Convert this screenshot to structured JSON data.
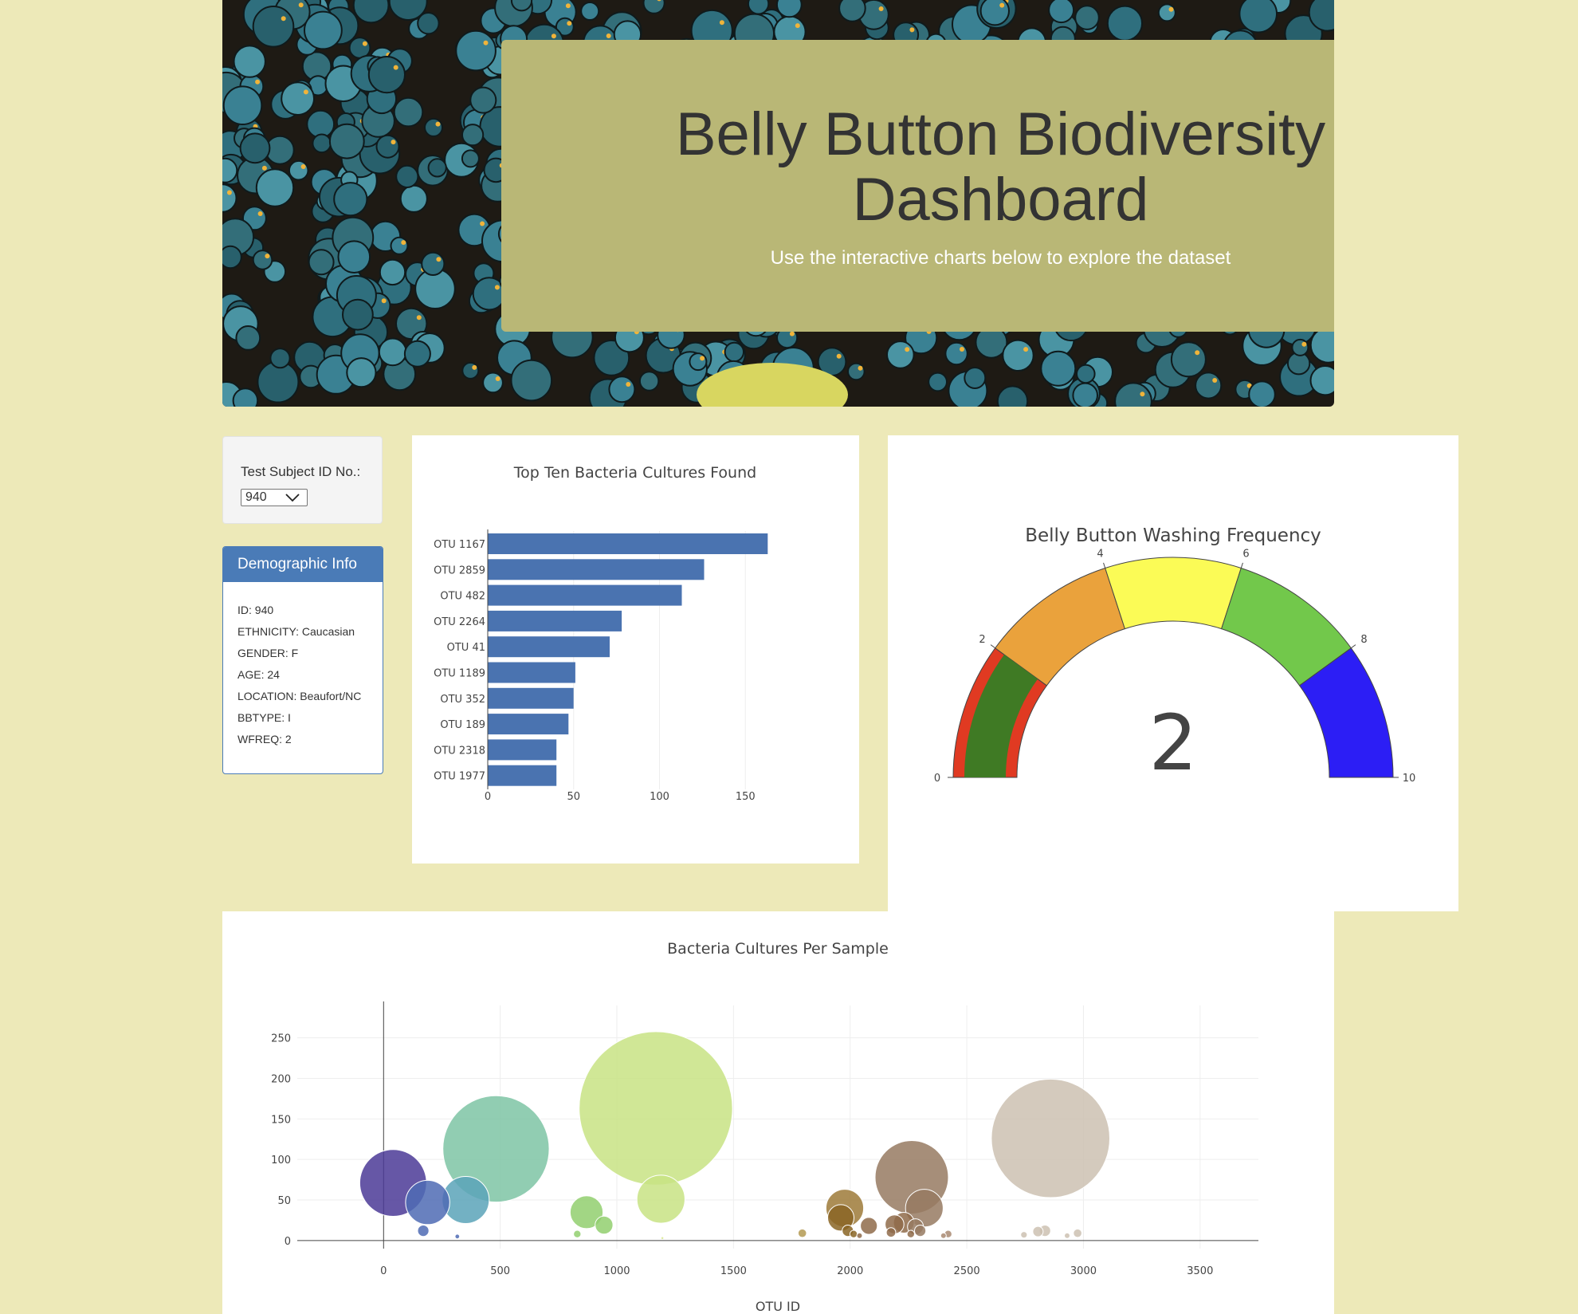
{
  "header": {
    "title_line1": "Belly Button Biodiversity",
    "title_line2": "Dashboard",
    "subtitle": "Use the interactive charts below to explore the dataset"
  },
  "selector": {
    "label": "Test Subject ID No.:",
    "value": "940"
  },
  "demographic": {
    "heading": "Demographic Info",
    "rows": [
      "ID: 940",
      "ETHNICITY: Caucasian",
      "GENDER: F",
      "AGE: 24",
      "LOCATION: Beaufort/NC",
      "BBTYPE: I",
      "WFREQ: 2"
    ]
  },
  "colors": {
    "page_bg": "#ede9b8",
    "jumbotron_bg": "#b9b776",
    "accent_blue": "#4a7bb7"
  },
  "chart_data": [
    {
      "type": "bar",
      "orientation": "horizontal",
      "title": "Top Ten Bacteria Cultures Found",
      "categories": [
        "OTU 1167",
        "OTU 2859",
        "OTU 482",
        "OTU 2264",
        "OTU 41",
        "OTU 1189",
        "OTU 352",
        "OTU 189",
        "OTU 2318",
        "OTU 1977"
      ],
      "values": [
        163,
        126,
        113,
        78,
        71,
        51,
        50,
        47,
        40,
        40
      ],
      "xlim": [
        0,
        175
      ],
      "xticks": [
        0,
        50,
        100,
        150
      ],
      "grid": true,
      "color": "#4a73b0"
    },
    {
      "type": "gauge",
      "title": "Belly Button Washing Frequency",
      "value": 2,
      "range": [
        0,
        10
      ],
      "tick_labels": [
        "0",
        "2",
        "4",
        "6",
        "8",
        "10"
      ],
      "steps": [
        {
          "range": [
            0,
            2
          ],
          "color": "#e03a22"
        },
        {
          "range": [
            2,
            4
          ],
          "color": "#eaa23c"
        },
        {
          "range": [
            4,
            6
          ],
          "color": "#fbfb56"
        },
        {
          "range": [
            6,
            8
          ],
          "color": "#72c84b"
        },
        {
          "range": [
            8,
            10
          ],
          "color": "#2c1ef5"
        }
      ],
      "bar_color": "#3f7a24"
    },
    {
      "type": "scatter",
      "title": "Bacteria Cultures Per Sample",
      "xlabel": "OTU ID",
      "xlim": [
        -370,
        3750
      ],
      "ylim": [
        -10,
        290
      ],
      "xticks": [
        0,
        500,
        1000,
        1500,
        2000,
        2500,
        3000,
        3500
      ],
      "yticks": [
        0,
        50,
        100,
        150,
        200,
        250
      ],
      "grid": true,
      "points": [
        {
          "x": 41,
          "y": 71,
          "size": 71,
          "color": "#4b3a96"
        },
        {
          "x": 189,
          "y": 47,
          "size": 47,
          "color": "#4f6bb4"
        },
        {
          "x": 170,
          "y": 12,
          "size": 12,
          "color": "#4f6bb4"
        },
        {
          "x": 316,
          "y": 5,
          "size": 5,
          "color": "#4f6bb4"
        },
        {
          "x": 352,
          "y": 50,
          "size": 50,
          "color": "#5aa3b8"
        },
        {
          "x": 482,
          "y": 113,
          "size": 113,
          "color": "#7ec4a4"
        },
        {
          "x": 870,
          "y": 35,
          "size": 35,
          "color": "#92cf6e"
        },
        {
          "x": 945,
          "y": 19,
          "size": 19,
          "color": "#92cf6e"
        },
        {
          "x": 830,
          "y": 8,
          "size": 8,
          "color": "#92cf6e"
        },
        {
          "x": 1167,
          "y": 163,
          "size": 163,
          "color": "#c8e384"
        },
        {
          "x": 1189,
          "y": 51,
          "size": 51,
          "color": "#c8e384"
        },
        {
          "x": 1195,
          "y": 3,
          "size": 3,
          "color": "#d8e78f"
        },
        {
          "x": 1795,
          "y": 9,
          "size": 9,
          "color": "#b49a52"
        },
        {
          "x": 1977,
          "y": 40,
          "size": 40,
          "color": "#9e7a38"
        },
        {
          "x": 1960,
          "y": 28,
          "size": 28,
          "color": "#8a6525"
        },
        {
          "x": 1990,
          "y": 12,
          "size": 12,
          "color": "#8a6525"
        },
        {
          "x": 2015,
          "y": 8,
          "size": 8,
          "color": "#8a6525"
        },
        {
          "x": 2080,
          "y": 18,
          "size": 18,
          "color": "#8f6b4a"
        },
        {
          "x": 2040,
          "y": 6,
          "size": 6,
          "color": "#8f6b4a"
        },
        {
          "x": 2264,
          "y": 78,
          "size": 78,
          "color": "#977a62"
        },
        {
          "x": 2318,
          "y": 40,
          "size": 40,
          "color": "#977a62"
        },
        {
          "x": 2190,
          "y": 20,
          "size": 20,
          "color": "#8f6b4a"
        },
        {
          "x": 2230,
          "y": 22,
          "size": 22,
          "color": "#8f6b4a"
        },
        {
          "x": 2280,
          "y": 17,
          "size": 17,
          "color": "#977a62"
        },
        {
          "x": 2300,
          "y": 12,
          "size": 12,
          "color": "#977a62"
        },
        {
          "x": 2260,
          "y": 8,
          "size": 8,
          "color": "#8f6b4a"
        },
        {
          "x": 2175,
          "y": 10,
          "size": 10,
          "color": "#8f6b4a"
        },
        {
          "x": 2420,
          "y": 8,
          "size": 8,
          "color": "#a98a72"
        },
        {
          "x": 2400,
          "y": 6,
          "size": 6,
          "color": "#a98a72"
        },
        {
          "x": 2859,
          "y": 126,
          "size": 126,
          "color": "#cdc1b1"
        },
        {
          "x": 2745,
          "y": 7,
          "size": 7,
          "color": "#cdc1b1"
        },
        {
          "x": 2805,
          "y": 11,
          "size": 11,
          "color": "#cdc1b1"
        },
        {
          "x": 2835,
          "y": 12,
          "size": 12,
          "color": "#cdc1b1"
        },
        {
          "x": 2975,
          "y": 9,
          "size": 9,
          "color": "#cdc1b1"
        },
        {
          "x": 2930,
          "y": 6,
          "size": 6,
          "color": "#cdc1b1"
        }
      ]
    }
  ]
}
